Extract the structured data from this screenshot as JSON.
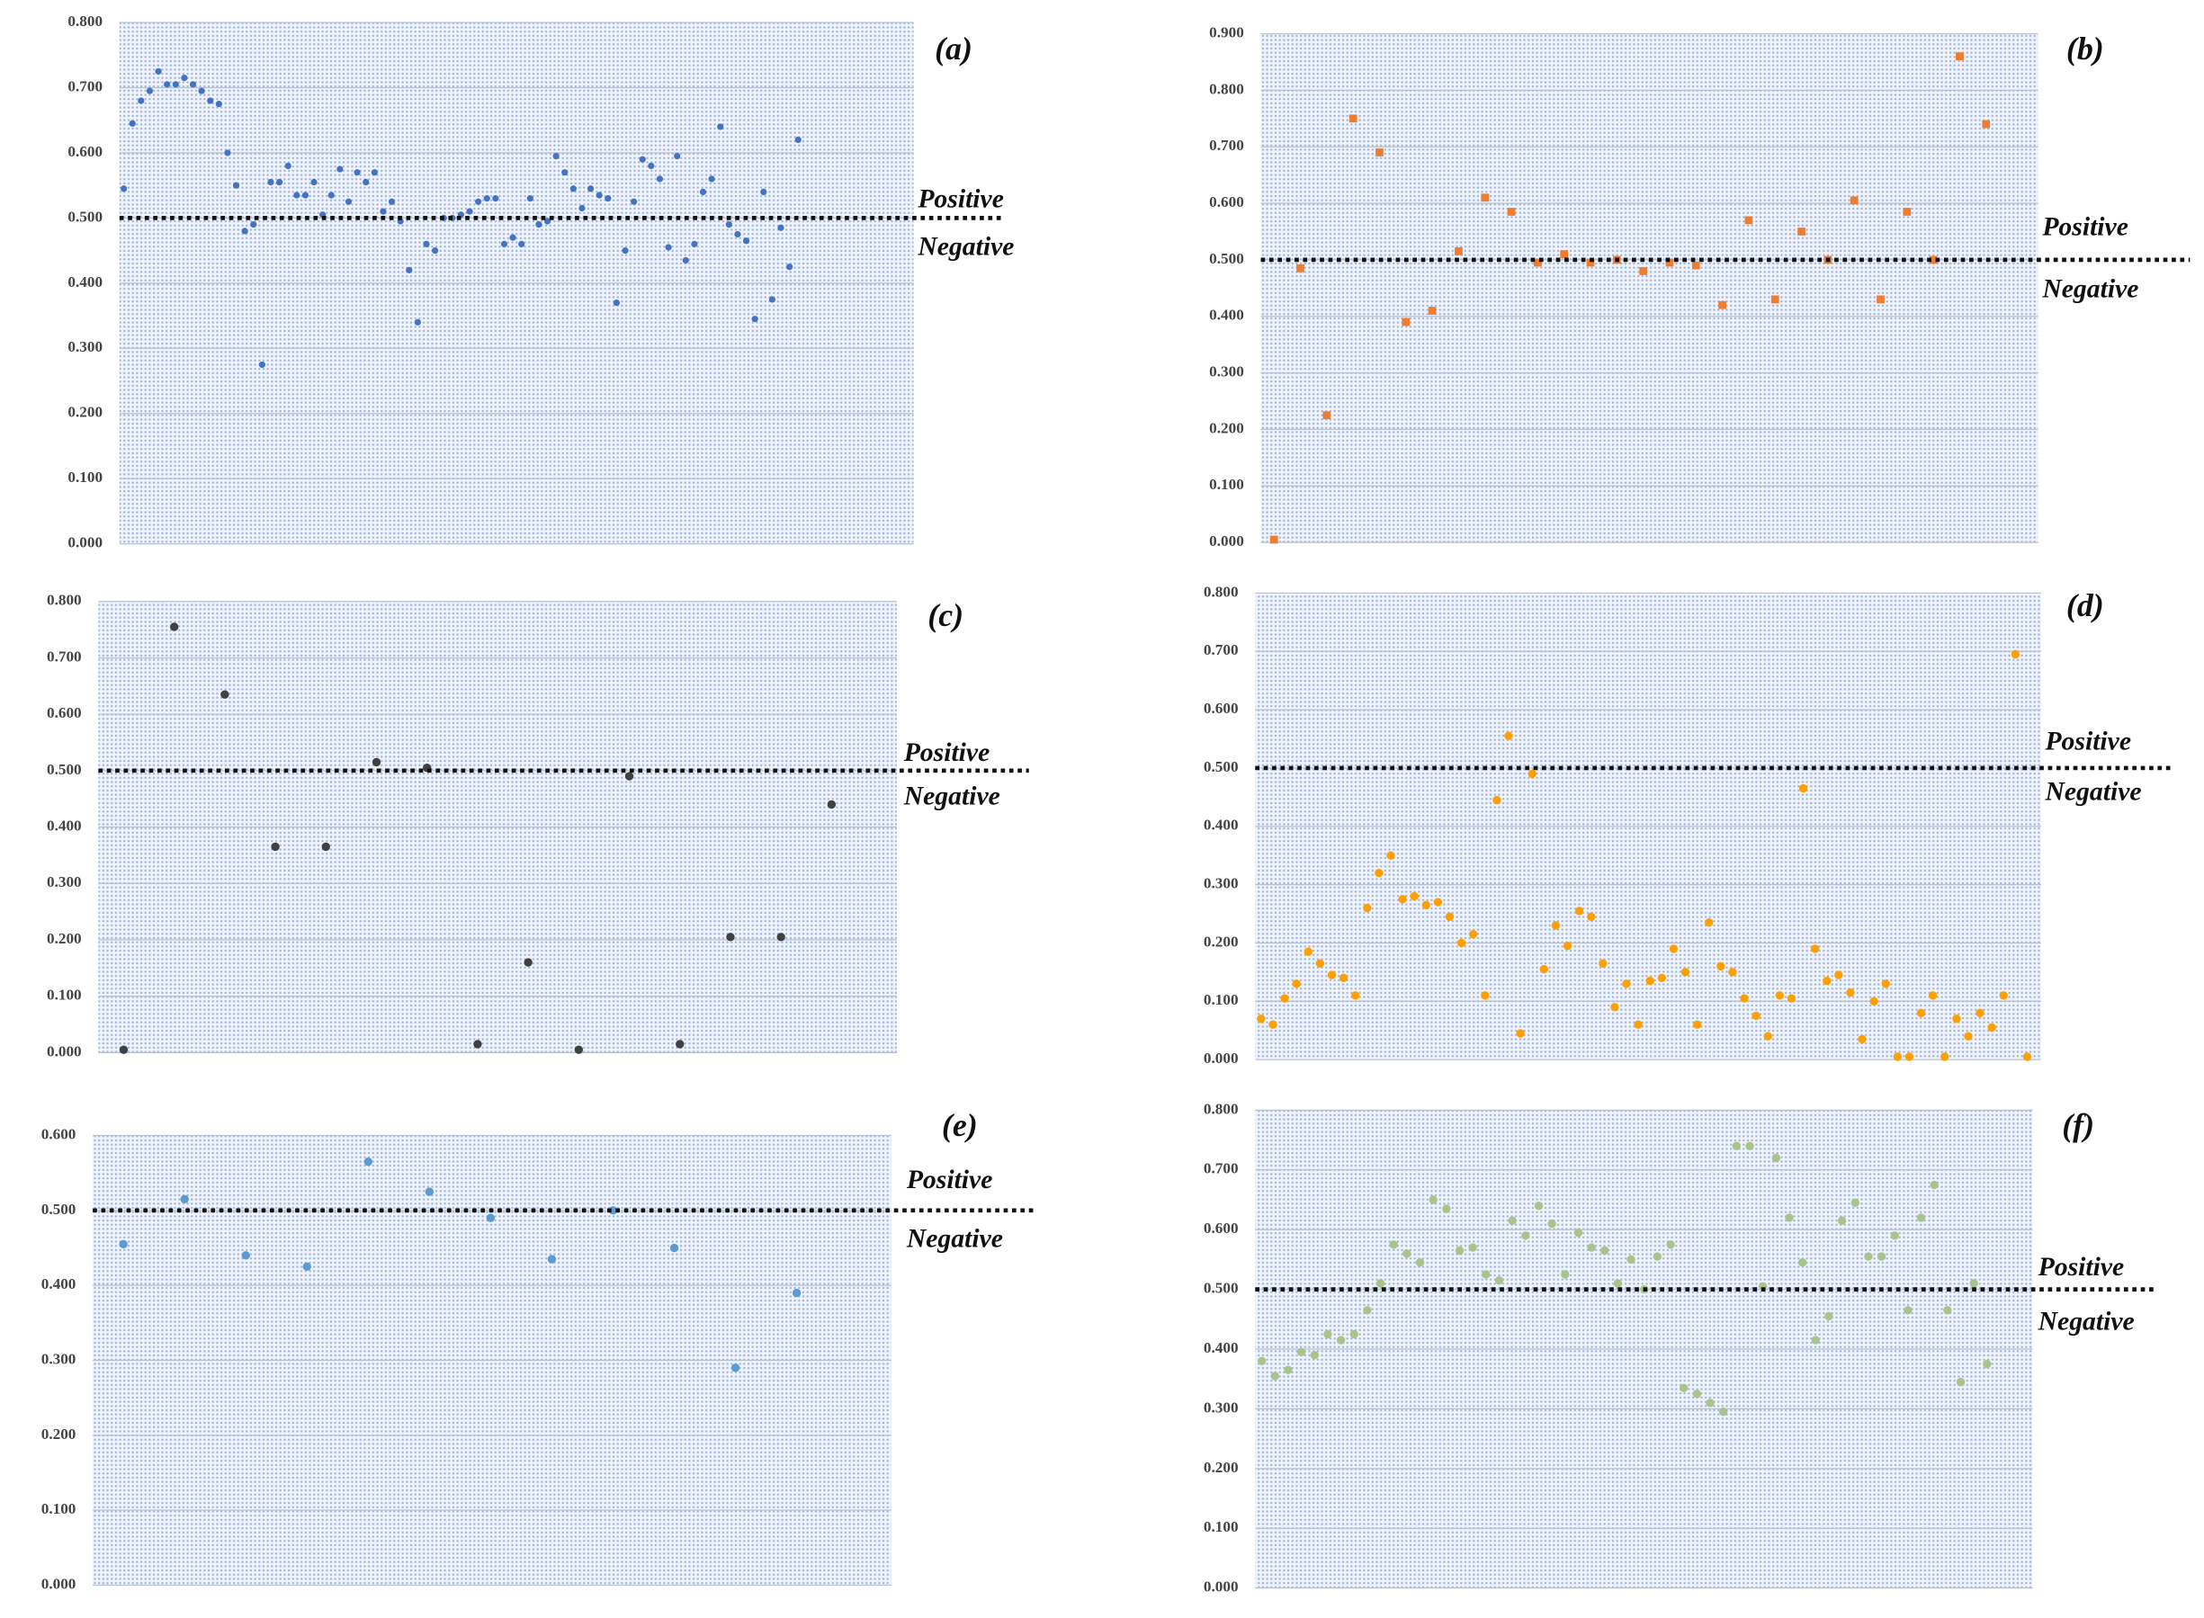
{
  "chart_data": [
    {
      "type": "scatter",
      "title": "(a)",
      "positive_label": "Positive",
      "negative_label": "Negative",
      "threshold": 0.5,
      "color": "#4472c4",
      "marker": "circle",
      "ylim": [
        0,
        0.8
      ],
      "yticks": [
        {
          "value": 0,
          "label": "0.000"
        },
        {
          "value": 0.1,
          "label": "0.100"
        },
        {
          "value": 0.2,
          "label": "0.200"
        },
        {
          "value": 0.3,
          "label": "0.300"
        },
        {
          "value": 0.4,
          "label": "0.400"
        },
        {
          "value": 0.5,
          "label": "0.500"
        },
        {
          "value": 0.6,
          "label": "0.600"
        },
        {
          "value": 0.7,
          "label": "0.700"
        },
        {
          "value": 0.8,
          "label": "0.800"
        }
      ],
      "values": [
        0.545,
        0.645,
        0.68,
        0.695,
        0.725,
        0.705,
        0.705,
        0.715,
        0.705,
        0.695,
        0.68,
        0.675,
        0.6,
        0.55,
        0.48,
        0.49,
        0.275,
        0.555,
        0.555,
        0.58,
        0.535,
        0.535,
        0.555,
        0.505,
        0.535,
        0.575,
        0.525,
        0.57,
        0.555,
        0.57,
        0.51,
        0.525,
        0.495,
        0.42,
        0.34,
        0.46,
        0.45,
        0.5,
        0.5,
        0.505,
        0.51,
        0.525,
        0.53,
        0.53,
        0.46,
        0.47,
        0.46,
        0.53,
        0.49,
        0.495,
        0.595,
        0.57,
        0.545,
        0.515,
        0.545,
        0.535,
        0.53,
        0.37,
        0.45,
        0.525,
        0.59,
        0.58,
        0.56,
        0.455,
        0.595,
        0.435,
        0.46,
        0.54,
        0.56,
        0.64,
        0.49,
        0.475,
        0.465,
        0.345,
        0.54,
        0.375,
        0.485,
        0.425,
        0.62
      ]
    },
    {
      "type": "scatter",
      "title": "(b)",
      "positive_label": "Positive",
      "negative_label": "Negative",
      "threshold": 0.5,
      "color": "#ed7d31",
      "marker": "square",
      "ylim": [
        0,
        0.9
      ],
      "yticks": [
        {
          "value": 0,
          "label": "0.000"
        },
        {
          "value": 0.1,
          "label": "0.100"
        },
        {
          "value": 0.2,
          "label": "0.200"
        },
        {
          "value": 0.3,
          "label": "0.300"
        },
        {
          "value": 0.4,
          "label": "0.400"
        },
        {
          "value": 0.5,
          "label": "0.500"
        },
        {
          "value": 0.6,
          "label": "0.600"
        },
        {
          "value": 0.7,
          "label": "0.700"
        },
        {
          "value": 0.8,
          "label": "0.800"
        },
        {
          "value": 0.9,
          "label": "0.900"
        }
      ],
      "values": [
        0.005,
        0.485,
        0.225,
        0.75,
        0.69,
        0.39,
        0.41,
        0.515,
        0.61,
        0.585,
        0.495,
        0.51,
        0.495,
        0.5,
        0.48,
        0.495,
        0.49,
        0.42,
        0.57,
        0.43,
        0.55,
        0.5,
        0.605,
        0.43,
        0.585,
        0.5,
        0.86,
        0.74
      ]
    },
    {
      "type": "scatter",
      "title": "(c)",
      "positive_label": "Positive",
      "negative_label": "Negative",
      "threshold": 0.5,
      "color": "#404040",
      "marker": "circle",
      "ylim": [
        0,
        0.8
      ],
      "yticks": [
        {
          "value": 0,
          "label": "0.000"
        },
        {
          "value": 0.1,
          "label": "0.100"
        },
        {
          "value": 0.2,
          "label": "0.200"
        },
        {
          "value": 0.3,
          "label": "0.300"
        },
        {
          "value": 0.4,
          "label": "0.400"
        },
        {
          "value": 0.5,
          "label": "0.500"
        },
        {
          "value": 0.6,
          "label": "0.600"
        },
        {
          "value": 0.7,
          "label": "0.700"
        },
        {
          "value": 0.8,
          "label": "0.800"
        }
      ],
      "values": [
        0.005,
        0.755,
        0.635,
        0.365,
        0.365,
        0.515,
        0.505,
        0.015,
        0.16,
        0.005,
        0.49,
        0.015,
        0.205,
        0.205,
        0.44
      ]
    },
    {
      "type": "scatter",
      "title": "(d)",
      "positive_label": "Positive",
      "negative_label": "Negative",
      "threshold": 0.5,
      "color": "#ffa000",
      "marker": "circle",
      "ylim": [
        0,
        0.8
      ],
      "yticks": [
        {
          "value": 0,
          "label": "0.000"
        },
        {
          "value": 0.1,
          "label": "0.100"
        },
        {
          "value": 0.2,
          "label": "0.200"
        },
        {
          "value": 0.3,
          "label": "0.300"
        },
        {
          "value": 0.4,
          "label": "0.400"
        },
        {
          "value": 0.5,
          "label": "0.500"
        },
        {
          "value": 0.6,
          "label": "0.600"
        },
        {
          "value": 0.7,
          "label": "0.700"
        },
        {
          "value": 0.8,
          "label": "0.800"
        }
      ],
      "values": [
        0.07,
        0.06,
        0.105,
        0.13,
        0.185,
        0.165,
        0.145,
        0.14,
        0.11,
        0.26,
        0.32,
        0.35,
        0.275,
        0.28,
        0.265,
        0.27,
        0.245,
        0.2,
        0.215,
        0.11,
        0.445,
        0.555,
        0.045,
        0.49,
        0.155,
        0.23,
        0.195,
        0.255,
        0.245,
        0.165,
        0.09,
        0.13,
        0.06,
        0.135,
        0.14,
        0.19,
        0.15,
        0.06,
        0.235,
        0.16,
        0.15,
        0.105,
        0.075,
        0.04,
        0.11,
        0.105,
        0.465,
        0.19,
        0.135,
        0.145,
        0.115,
        0.035,
        0.1,
        0.13,
        0.005,
        0.005,
        0.08,
        0.11,
        0.005,
        0.07,
        0.04,
        0.08,
        0.055,
        0.11,
        0.695,
        0.005
      ]
    },
    {
      "type": "scatter",
      "title": "(e)",
      "positive_label": "Positive",
      "negative_label": "Negative",
      "threshold": 0.5,
      "color": "#5b9bd5",
      "marker": "circle",
      "ylim": [
        0,
        0.6
      ],
      "yticks": [
        {
          "value": 0,
          "label": "0.000"
        },
        {
          "value": 0.1,
          "label": "0.100"
        },
        {
          "value": 0.2,
          "label": "0.200"
        },
        {
          "value": 0.3,
          "label": "0.300"
        },
        {
          "value": 0.4,
          "label": "0.400"
        },
        {
          "value": 0.5,
          "label": "0.500"
        },
        {
          "value": 0.6,
          "label": "0.600"
        }
      ],
      "values": [
        0.455,
        0.515,
        0.44,
        0.425,
        0.565,
        0.525,
        0.49,
        0.435,
        0.5,
        0.45,
        0.29,
        0.39
      ]
    },
    {
      "type": "scatter",
      "title": "(f)",
      "positive_label": "Positive",
      "negative_label": "Negative",
      "threshold": 0.5,
      "color": "#a9c48a",
      "marker": "circle",
      "ylim": [
        0,
        0.8
      ],
      "yticks": [
        {
          "value": 0,
          "label": "0.000"
        },
        {
          "value": 0.1,
          "label": "0.100"
        },
        {
          "value": 0.2,
          "label": "0.200"
        },
        {
          "value": 0.3,
          "label": "0.300"
        },
        {
          "value": 0.4,
          "label": "0.400"
        },
        {
          "value": 0.5,
          "label": "0.500"
        },
        {
          "value": 0.6,
          "label": "0.600"
        },
        {
          "value": 0.7,
          "label": "0.700"
        },
        {
          "value": 0.8,
          "label": "0.800"
        }
      ],
      "values": [
        0.38,
        0.355,
        0.365,
        0.395,
        0.39,
        0.425,
        0.415,
        0.425,
        0.465,
        0.51,
        0.575,
        0.56,
        0.545,
        0.65,
        0.635,
        0.565,
        0.57,
        0.525,
        0.515,
        0.615,
        0.59,
        0.64,
        0.61,
        0.525,
        0.595,
        0.57,
        0.565,
        0.51,
        0.55,
        0.5,
        0.555,
        0.575,
        0.335,
        0.325,
        0.31,
        0.295,
        0.74,
        0.74,
        0.505,
        0.72,
        0.62,
        0.545,
        0.415,
        0.455,
        0.615,
        0.645,
        0.555,
        0.555,
        0.59,
        0.465,
        0.62,
        0.675,
        0.465,
        0.345,
        0.51,
        0.375
      ]
    }
  ]
}
